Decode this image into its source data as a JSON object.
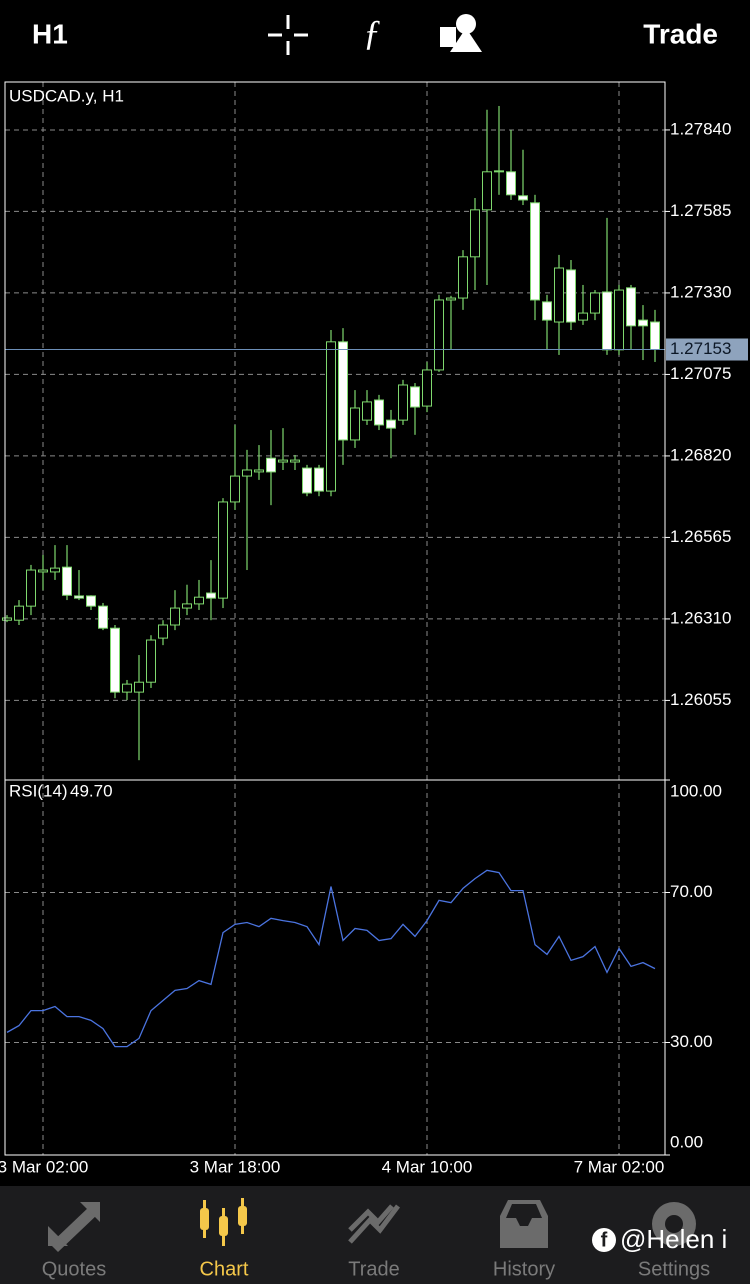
{
  "toolbar": {
    "timeframe": "H1",
    "trade": "Trade"
  },
  "chart_data": [
    {
      "type": "candlestick",
      "title": "USDCAD.y, H1",
      "categories": [
        null,
        null,
        null,
        "3 Mar 02:00",
        null,
        null,
        null,
        null,
        null,
        null,
        null,
        null,
        null,
        null,
        null,
        null,
        null,
        null,
        null,
        "3 Mar 18:00",
        null,
        null,
        null,
        null,
        null,
        null,
        null,
        null,
        null,
        null,
        null,
        null,
        null,
        null,
        null,
        "4 Mar 10:00",
        null,
        null,
        null,
        null,
        null,
        null,
        null,
        null,
        null,
        null,
        null,
        null,
        null,
        null,
        null,
        "7 Mar 02:00",
        null,
        null,
        null
      ],
      "open": [
        1.26306,
        1.26306,
        1.2635,
        1.26457,
        1.26457,
        1.26472,
        1.26382,
        1.26382,
        1.2635,
        1.26281,
        1.26081,
        1.26081,
        1.26112,
        1.2625,
        1.26291,
        1.26344,
        1.26357,
        1.26391,
        1.26375,
        1.26676,
        1.26757,
        1.2677,
        1.26813,
        1.26801,
        1.26801,
        1.26782,
        1.26782,
        1.2671,
        1.27177,
        1.2687,
        1.26932,
        1.26995,
        1.26932,
        1.26932,
        1.27036,
        1.26976,
        1.27089,
        1.27308,
        1.27314,
        1.27443,
        1.2759,
        1.27709,
        1.27709,
        1.27634,
        1.27612,
        1.27302,
        1.27239,
        1.27402,
        1.27245,
        1.27267,
        1.27333,
        1.27152,
        1.27346,
        1.27245,
        1.27239
      ],
      "high": [
        1.26322,
        1.26369,
        1.26479,
        1.2651,
        1.26541,
        1.26541,
        1.26463,
        1.26384,
        1.2636,
        1.26291,
        1.26119,
        1.26197,
        1.26259,
        1.26306,
        1.264,
        1.26417,
        1.26432,
        1.26494,
        1.26688,
        1.26917,
        1.26839,
        1.26854,
        1.26901,
        1.26907,
        1.26823,
        1.26792,
        1.26792,
        1.27214,
        1.2722,
        1.27026,
        1.27026,
        1.27011,
        1.26964,
        1.27058,
        1.27048,
        1.27114,
        1.27324,
        1.27321,
        1.27464,
        1.27627,
        1.27903,
        1.27915,
        1.2784,
        1.27778,
        1.27637,
        1.27324,
        1.27449,
        1.27433,
        1.27355,
        1.27339,
        1.27565,
        1.27355,
        1.27355,
        1.27292,
        1.27277
      ],
      "low": [
        1.263,
        1.26291,
        1.26322,
        1.264,
        1.26432,
        1.26369,
        1.26369,
        1.26338,
        1.26275,
        1.26062,
        1.26056,
        1.25868,
        1.26094,
        1.26228,
        1.26275,
        1.26322,
        1.26338,
        1.26306,
        1.26344,
        1.26651,
        1.26463,
        1.26745,
        1.26666,
        1.26776,
        1.26776,
        1.26694,
        1.26694,
        1.26694,
        1.26792,
        1.26845,
        1.26917,
        1.26901,
        1.26813,
        1.26917,
        1.26886,
        1.26957,
        1.27083,
        1.27152,
        1.27277,
        1.27339,
        1.27355,
        1.27637,
        1.27621,
        1.27605,
        1.27245,
        1.27152,
        1.27136,
        1.27214,
        1.2723,
        1.27245,
        1.27136,
        1.27136,
        1.27152,
        1.2712,
        1.27114
      ],
      "close": [
        1.26313,
        1.2635,
        1.26463,
        1.26463,
        1.26469,
        1.26384,
        1.26375,
        1.2635,
        1.26281,
        1.26081,
        1.26106,
        1.26112,
        1.26244,
        1.26291,
        1.26344,
        1.26357,
        1.26378,
        1.26375,
        1.26676,
        1.26757,
        1.26776,
        1.26776,
        1.2677,
        1.26807,
        1.26807,
        1.26704,
        1.2671,
        1.27177,
        1.2687,
        1.2697,
        1.26989,
        1.26917,
        1.26907,
        1.27042,
        1.26973,
        1.27089,
        1.27308,
        1.27314,
        1.27443,
        1.2759,
        1.27709,
        1.27712,
        1.27637,
        1.27621,
        1.27308,
        1.27245,
        1.27408,
        1.27239,
        1.27267,
        1.2733,
        1.27152,
        1.27339,
        1.27227,
        1.27227,
        1.27153
      ],
      "ylim": [
        1.25806,
        1.2799
      ],
      "yticks": [
        {
          "value": 1.2784,
          "label": "1.27840"
        },
        1.27585,
        {
          "value": 1.2733,
          "label": "1.27330"
        },
        1.27075,
        {
          "value": 1.2682,
          "label": "1.26820"
        },
        1.26565,
        {
          "value": 1.2631,
          "label": "1.26310"
        },
        1.26055
      ],
      "current_price": 1.27153,
      "color": "#7fd86e",
      "up_fill": "#000000",
      "down_fill": "#ffffff",
      "grid": true
    },
    {
      "type": "line",
      "title": "RSI(14)",
      "current_value": {
        "value": 49.7,
        "label": "49.70"
      },
      "values": [
        32.7,
        34.5,
        38.5,
        38.5,
        39.6,
        36.9,
        36.9,
        35.9,
        33.7,
        28.9,
        28.9,
        31.1,
        38.5,
        41.2,
        43.9,
        44.4,
        46.5,
        45.5,
        59.3,
        61.5,
        62.0,
        60.9,
        63.1,
        62.5,
        62.0,
        60.9,
        56.1,
        71.6,
        57.2,
        60.4,
        59.9,
        57.2,
        57.7,
        61.5,
        58.3,
        62.5,
        67.9,
        67.3,
        71.1,
        73.7,
        75.9,
        75.3,
        70.5,
        70.5,
        56.1,
        53.5,
        58.3,
        51.9,
        52.9,
        55.6,
        48.7,
        55.1,
        50.3,
        51.3,
        49.7
      ],
      "color": "#4b74e0",
      "ylim": [
        0,
        100
      ],
      "yticks": [
        {
          "value": 0,
          "label": "0.00"
        },
        {
          "value": 30,
          "label": "30.00"
        },
        {
          "value": 70,
          "label": "70.00"
        },
        {
          "value": 100,
          "label": "100.00"
        }
      ],
      "grid": true
    }
  ],
  "tabs": [
    "Quotes",
    "Chart",
    "Trade",
    "History",
    "Settings"
  ],
  "active_tab": 1,
  "watermark": "@Helen i"
}
